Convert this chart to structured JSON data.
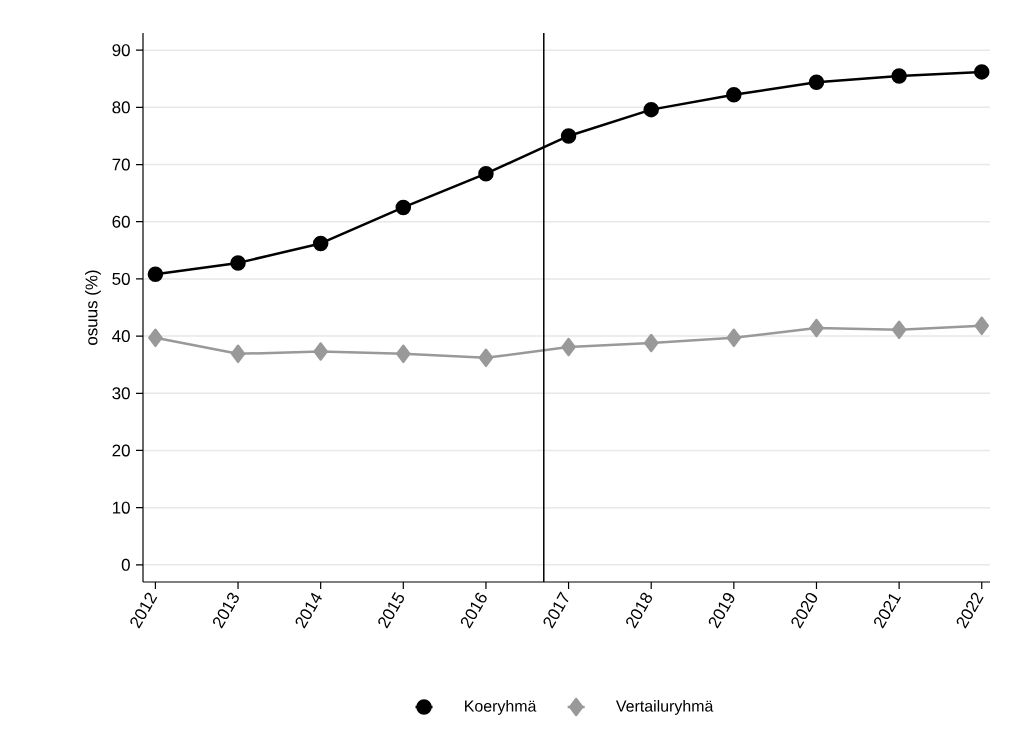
{
  "chart_data": {
    "type": "line",
    "ylabel": "osuus (%)",
    "x": [
      2012,
      2013,
      2014,
      2015,
      2016,
      2017,
      2018,
      2019,
      2020,
      2021,
      2022
    ],
    "series": [
      {
        "name": "Koeryhmä",
        "color": "#000000",
        "marker": "circle",
        "values": [
          50.8,
          52.8,
          56.2,
          62.5,
          68.4,
          75.0,
          79.6,
          82.2,
          84.4,
          85.5,
          86.2
        ]
      },
      {
        "name": "Vertailuryhmä",
        "color": "#999999",
        "marker": "diamond",
        "values": [
          39.7,
          36.9,
          37.3,
          36.9,
          36.2,
          38.1,
          38.8,
          39.7,
          41.4,
          41.1,
          41.8
        ]
      }
    ],
    "xlim": [
      2011.85,
      2022.1
    ],
    "xticks": [
      2012,
      2013,
      2014,
      2015,
      2016,
      2017,
      2018,
      2019,
      2020,
      2021,
      2022
    ],
    "ylim": [
      -3,
      93
    ],
    "yticks": [
      0,
      10,
      20,
      30,
      40,
      50,
      60,
      70,
      80,
      90
    ],
    "ref_lines": [
      {
        "axis": "x",
        "value": 2016.7,
        "color": "#000000"
      }
    ],
    "grid": "y",
    "legend": "bottom",
    "line_style": "solid"
  }
}
